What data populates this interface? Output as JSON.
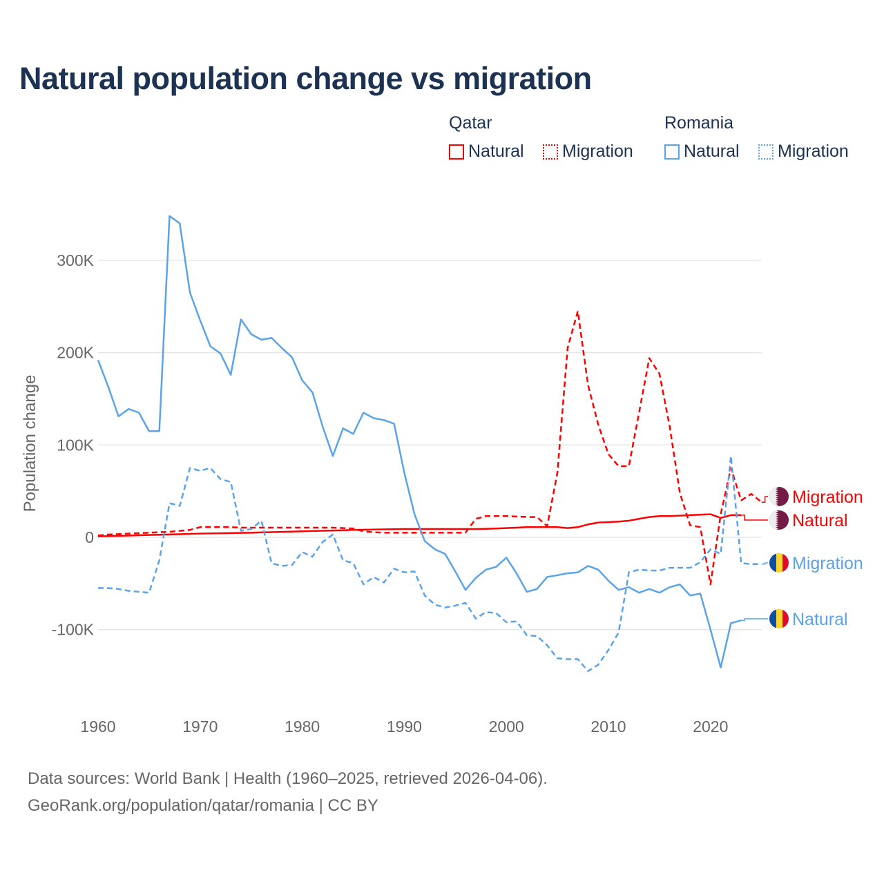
{
  "chart_data": {
    "type": "line",
    "title": "Natural population change vs migration",
    "xlabel": "",
    "ylabel": "Population change",
    "xlim": [
      1960,
      2025
    ],
    "ylim": [
      -170000,
      360000
    ],
    "x_ticks": [
      1960,
      1970,
      1980,
      1990,
      2000,
      2010,
      2020
    ],
    "x_tick_labels": [
      "1960",
      "1970",
      "1980",
      "1990",
      "2000",
      "2010",
      "2020"
    ],
    "y_ticks": [
      -100000,
      0,
      100000,
      200000,
      300000
    ],
    "y_tick_labels": [
      "-100K",
      "0",
      "100K",
      "200K",
      "300K"
    ],
    "grid": true,
    "legend": {
      "placement": "top-right",
      "groups": [
        {
          "name": "Qatar",
          "items": [
            "Natural",
            "Migration"
          ]
        },
        {
          "name": "Romania",
          "items": [
            "Natural",
            "Migration"
          ]
        }
      ]
    },
    "series": [
      {
        "name": "Qatar Natural",
        "country": "Qatar",
        "kind": "Natural",
        "color": "#ff0000",
        "dash": false,
        "start": 1960,
        "values": [
          1000,
          1300,
          1600,
          1900,
          2200,
          2500,
          2800,
          3100,
          3400,
          3700,
          4000,
          4200,
          4400,
          4600,
          4800,
          5000,
          5300,
          5600,
          5900,
          6200,
          6500,
          6800,
          7100,
          7400,
          7700,
          8000,
          8200,
          8400,
          8600,
          8800,
          9000,
          9000,
          9000,
          9000,
          9000,
          9000,
          9000,
          9000,
          9200,
          9500,
          10000,
          10500,
          11000,
          11000,
          11000,
          11000,
          10000,
          11000,
          14000,
          16000,
          16500,
          17000,
          18000,
          20000,
          22000,
          23000,
          23000,
          23500,
          24000,
          24500,
          25000,
          21000,
          24000,
          24000
        ]
      },
      {
        "name": "Qatar Migration",
        "country": "Qatar",
        "kind": "Migration",
        "color": "#ff0000",
        "dash": true,
        "start": 1960,
        "values": [
          2000,
          3000,
          3500,
          4000,
          4500,
          5000,
          5500,
          6000,
          7000,
          8000,
          11000,
          11000,
          11000,
          11000,
          10500,
          10500,
          10500,
          10500,
          10500,
          10500,
          10500,
          10500,
          10500,
          10500,
          10000,
          9500,
          6500,
          5500,
          5000,
          5000,
          5000,
          5000,
          5000,
          5000,
          5000,
          5000,
          5000,
          20000,
          23000,
          23000,
          23000,
          22500,
          22000,
          22000,
          12000,
          70000,
          205000,
          245000,
          165000,
          122000,
          90000,
          77000,
          77000,
          135000,
          194000,
          177000,
          120000,
          48000,
          13000,
          11000,
          -51000,
          25000,
          75000,
          40000,
          47000,
          38000
        ]
      },
      {
        "name": "Romania Natural",
        "country": "Romania",
        "kind": "Natural",
        "color": "#5aa3e8",
        "dash": false,
        "start": 1960,
        "values": [
          192000,
          163000,
          131000,
          139000,
          135000,
          115000,
          115000,
          348000,
          340000,
          265000,
          235000,
          207000,
          199000,
          176000,
          236000,
          220000,
          214000,
          216000,
          205000,
          195000,
          170000,
          157000,
          120000,
          88000,
          118000,
          112000,
          135000,
          129000,
          127000,
          123000,
          70000,
          25000,
          -4000,
          -13000,
          -18000,
          -37000,
          -57000,
          -44000,
          -35000,
          -32000,
          -22000,
          -39000,
          -59000,
          -56000,
          -43000,
          -41000,
          -39000,
          -38000,
          -31000,
          -35000,
          -47000,
          -57000,
          -54000,
          -60000,
          -56000,
          -60000,
          -54000,
          -51000,
          -63000,
          -61000,
          -100000,
          -141000,
          -93000,
          -90000
        ]
      },
      {
        "name": "Romania Migration",
        "country": "Romania",
        "kind": "Migration",
        "color": "#5aa3e8",
        "dash": true,
        "start": 1960,
        "values": [
          -55000,
          -55000,
          -56000,
          -58000,
          -59000,
          -60000,
          -25000,
          37000,
          34000,
          75000,
          72000,
          75000,
          63000,
          60000,
          7000,
          9000,
          18000,
          -28000,
          -31000,
          -30000,
          -16000,
          -21000,
          -5000,
          3000,
          -25000,
          -28000,
          -51000,
          -43000,
          -49000,
          -34000,
          -38000,
          -37000,
          -63000,
          -73000,
          -76000,
          -74000,
          -71000,
          -88000,
          -81000,
          -82000,
          -92000,
          -91000,
          -106000,
          -107000,
          -117000,
          -131000,
          -132000,
          -132000,
          -145000,
          -138000,
          -122000,
          -103000,
          -38000,
          -35000,
          -36000,
          -36000,
          -33000,
          -33000,
          -33000,
          -27000,
          -13000,
          -18000,
          88000,
          -28000,
          -29000,
          -29000
        ]
      }
    ],
    "end_labels": [
      {
        "text": "Migration",
        "series": 1,
        "flag": "qatar",
        "color": "#ff0000"
      },
      {
        "text": "Natural",
        "series": 0,
        "flag": "qatar",
        "color": "#ff0000"
      },
      {
        "text": "Migration",
        "series": 3,
        "flag": "romania",
        "color": "#5aa3e8"
      },
      {
        "text": "Natural",
        "series": 2,
        "flag": "romania",
        "color": "#5aa3e8"
      }
    ]
  },
  "legend": {
    "qatar": "Qatar",
    "romania": "Romania",
    "natural": "Natural",
    "migration": "Migration"
  },
  "footer": {
    "line1": "Data sources: World Bank | Health (1960–2025, retrieved 2026-04-06).",
    "line2": "GeoRank.org/population/qatar/romania | CC BY"
  },
  "colors": {
    "qatar": "#ff0000",
    "romania": "#5aa3e8",
    "title": "#1b3252"
  }
}
